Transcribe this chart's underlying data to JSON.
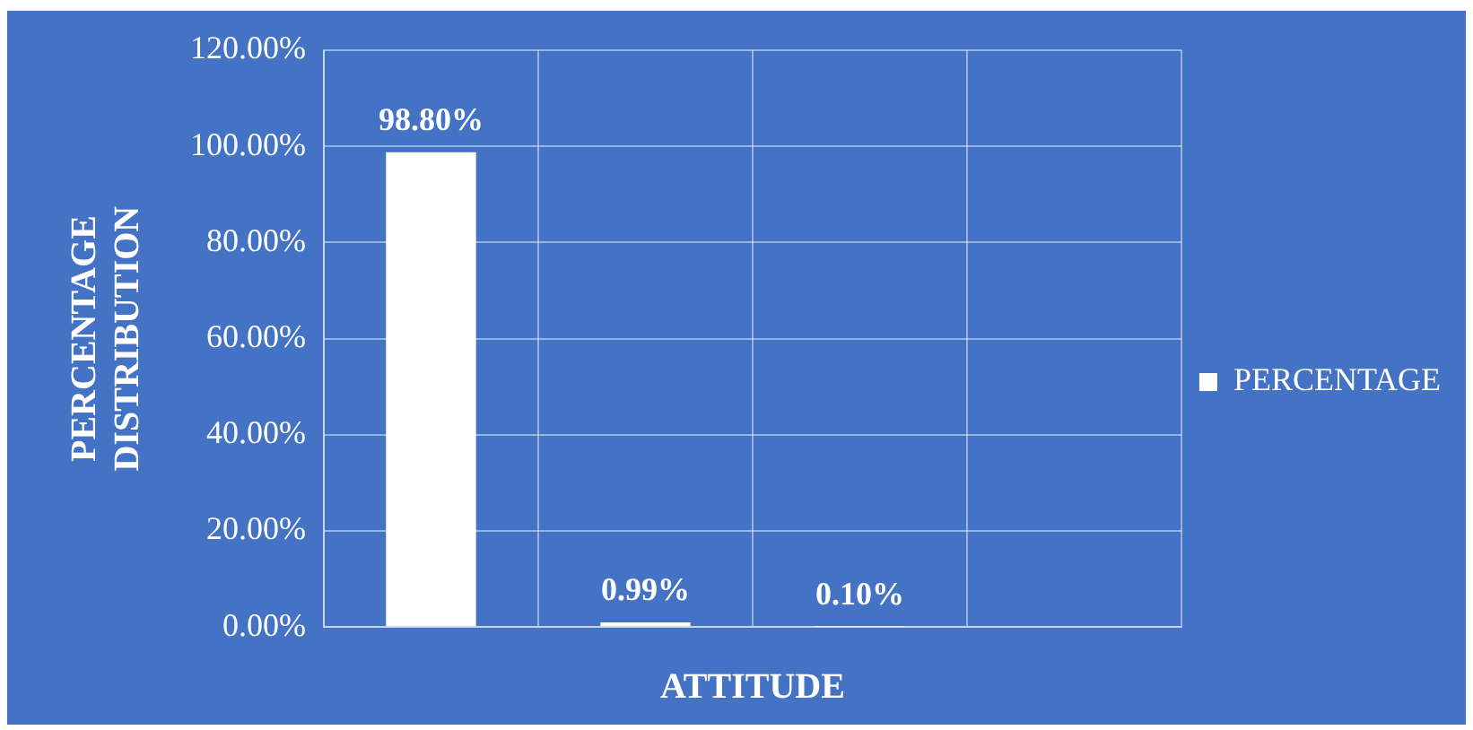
{
  "chart_data": {
    "type": "bar",
    "xlabel": "ATTITUDE",
    "ylabel": "PERCENTAGE DISTRIBUTION",
    "categories": [
      null,
      null,
      null,
      null
    ],
    "series": [
      {
        "name": "PERCENTAGE",
        "color": "#ffffff",
        "values": [
          98.8,
          0.99,
          0.1,
          null
        ],
        "value_labels": [
          "98.80%",
          "0.99%",
          "0.10%",
          null
        ]
      }
    ],
    "ylim": [
      0,
      120
    ],
    "yticks": [
      {
        "value": 0,
        "label": "0.00%"
      },
      {
        "value": 20,
        "label": "20.00%"
      },
      {
        "value": 40,
        "label": "40.00%"
      },
      {
        "value": 60,
        "label": "60.00%"
      },
      {
        "value": 80,
        "label": "80.00%"
      },
      {
        "value": 100,
        "label": "100.00%"
      },
      {
        "value": 120,
        "label": "120.00%"
      }
    ],
    "grid": true,
    "legend": "right"
  }
}
